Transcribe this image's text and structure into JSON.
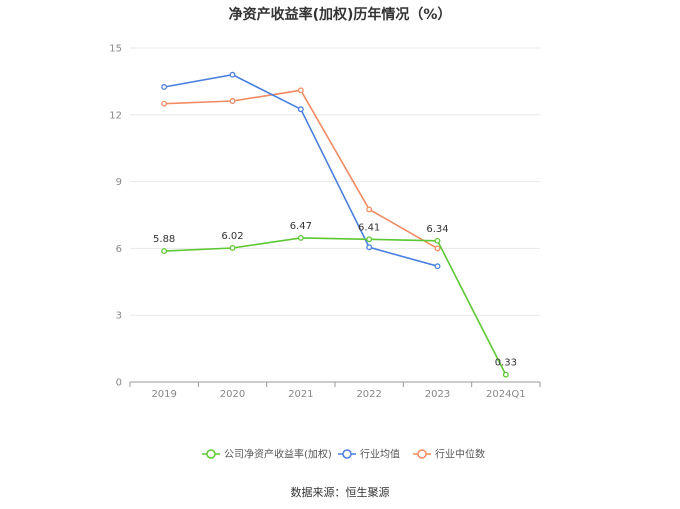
{
  "title": "净资产收益率(加权)历年情况（%）",
  "source": "数据来源：恒生聚源",
  "colors": {
    "company": "#5cc832",
    "industry_avg": "#4a7fe0",
    "industry_median": "#f28a62",
    "grid": "#e8e8e8",
    "axis": "#999999"
  },
  "chart_data": {
    "type": "line",
    "categories": [
      "2019",
      "2020",
      "2021",
      "2022",
      "2023",
      "2024Q1"
    ],
    "ylim": [
      0,
      15
    ],
    "yticks": [
      0,
      3,
      6,
      9,
      12,
      15
    ],
    "grid": true,
    "legend_position": "bottom",
    "series": [
      {
        "name": "公司净资产收益率(加权)",
        "key": "company",
        "values": [
          5.88,
          6.02,
          6.47,
          6.41,
          6.34,
          0.33
        ],
        "labels": [
          "5.88",
          "6.02",
          "6.47",
          "6.41",
          "6.34",
          "0.33"
        ]
      },
      {
        "name": "行业均值",
        "key": "industry_avg",
        "values": [
          13.25,
          13.8,
          12.25,
          6.05,
          5.2,
          null
        ]
      },
      {
        "name": "行业中位数",
        "key": "industry_median",
        "values": [
          12.5,
          12.62,
          13.1,
          7.75,
          6.0,
          null
        ]
      }
    ]
  }
}
